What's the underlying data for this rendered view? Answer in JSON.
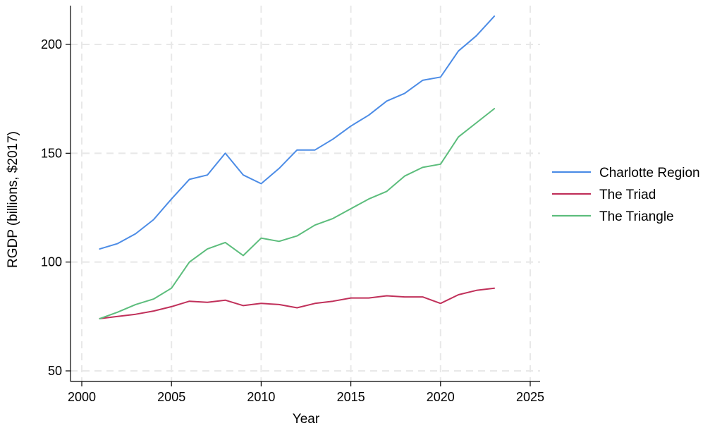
{
  "chart_data": {
    "type": "line",
    "title": "",
    "xlabel": "Year",
    "ylabel": "RGDP (billions, $2017)",
    "xlim": [
      2000,
      2025
    ],
    "ylim": [
      50,
      215
    ],
    "x_ticks": [
      2000,
      2005,
      2010,
      2015,
      2020,
      2025
    ],
    "y_ticks": [
      50,
      100,
      150,
      200
    ],
    "grid": true,
    "legend_position": "right",
    "x": [
      2001,
      2002,
      2003,
      2004,
      2005,
      2006,
      2007,
      2008,
      2009,
      2010,
      2011,
      2012,
      2013,
      2014,
      2015,
      2016,
      2017,
      2018,
      2019,
      2020,
      2021,
      2022,
      2023
    ],
    "series": [
      {
        "name": "Charlotte Region",
        "color": "#4c8ce6",
        "values": [
          106,
          108.5,
          113,
          119.5,
          129,
          138,
          140,
          150,
          140,
          136,
          143,
          151.5,
          151.5,
          156.5,
          162.5,
          167.5,
          174,
          177.5,
          183.5,
          185,
          197,
          204,
          213
        ]
      },
      {
        "name": "The Triad",
        "color": "#c0305a",
        "values": [
          74,
          75,
          76,
          77.5,
          79.5,
          82,
          81.5,
          82.5,
          80,
          81,
          80.5,
          79,
          81,
          82,
          83.5,
          83.5,
          84.5,
          84,
          84,
          81,
          85,
          87,
          88
        ]
      },
      {
        "name": "The Triangle",
        "color": "#5cbd7c",
        "values": [
          74,
          77,
          80.5,
          83,
          88,
          100,
          106,
          109,
          103,
          111,
          109.5,
          112,
          117,
          120,
          124.5,
          129,
          132.5,
          139.5,
          143.5,
          145,
          157.5,
          164,
          170.5
        ]
      }
    ]
  }
}
